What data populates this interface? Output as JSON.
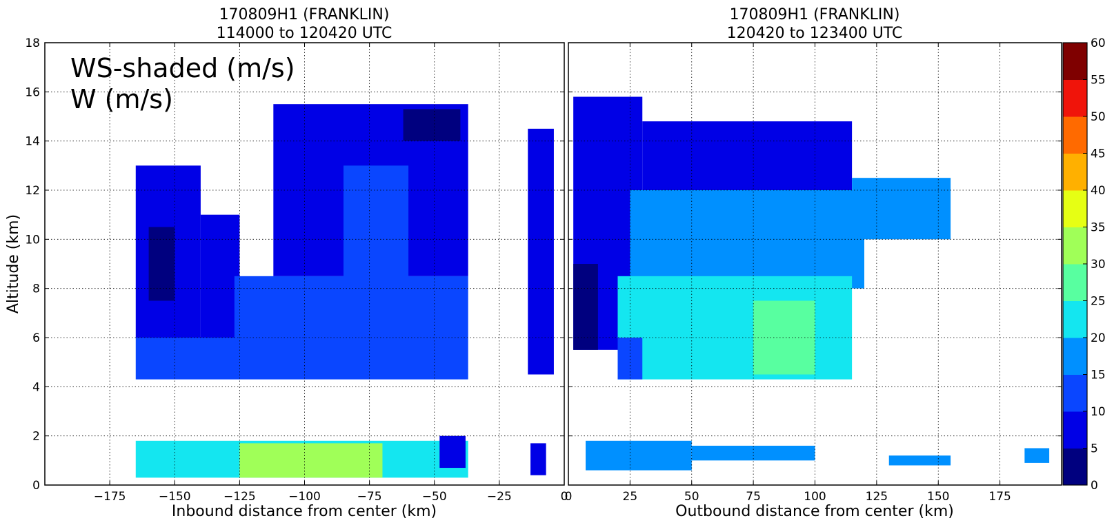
{
  "figure": {
    "overlay_lines": [
      "WS-shaded (m/s)",
      "W (m/s)"
    ],
    "ylabel": "Altitude (km)"
  },
  "colorbar": {
    "ticks": [
      0,
      5,
      10,
      15,
      20,
      25,
      30,
      35,
      40,
      45,
      50,
      55,
      60
    ],
    "colors": [
      "#00007f",
      "#0000e6",
      "#0a46ff",
      "#0090ff",
      "#14e6f0",
      "#58ffa0",
      "#a0ff58",
      "#e6ff14",
      "#ffb000",
      "#ff6a00",
      "#f0140a",
      "#7f0000"
    ]
  },
  "chart_data": [
    {
      "type": "heatmap",
      "title": "170809H1 (FRANKLIN)",
      "subtitle": "114000 to 120420 UTC",
      "xlabel": "Inbound distance from center (km)",
      "ylabel": "Altitude (km)",
      "xlim": [
        -200,
        0
      ],
      "ylim": [
        0,
        18
      ],
      "xticks": [
        -175,
        -150,
        -125,
        -100,
        -75,
        -50,
        -25,
        0
      ],
      "yticks": [
        0,
        2,
        4,
        6,
        8,
        10,
        12,
        14,
        16,
        18
      ],
      "grid": true,
      "colorbar_range": [
        0,
        60
      ],
      "regions": [
        {
          "x": [
            -165,
            -37
          ],
          "alt": [
            4.3,
            6.0
          ],
          "ws": 12
        },
        {
          "x": [
            -165,
            -140
          ],
          "alt": [
            6.0,
            13.0
          ],
          "ws": 8
        },
        {
          "x": [
            -160,
            -150
          ],
          "alt": [
            7.5,
            10.5
          ],
          "ws": 3
        },
        {
          "x": [
            -140,
            -125
          ],
          "alt": [
            6.0,
            11.0
          ],
          "ws": 8
        },
        {
          "x": [
            -127,
            -37
          ],
          "alt": [
            6.0,
            8.5
          ],
          "ws": 12
        },
        {
          "x": [
            -112,
            -37
          ],
          "alt": [
            8.5,
            15.5
          ],
          "ws": 8
        },
        {
          "x": [
            -85,
            -60
          ],
          "alt": [
            7.0,
            13.0
          ],
          "ws": 12
        },
        {
          "x": [
            -62,
            -40
          ],
          "alt": [
            14.0,
            15.3
          ],
          "ws": 3
        },
        {
          "x": [
            -14,
            -4
          ],
          "alt": [
            4.5,
            14.5
          ],
          "ws": 8
        },
        {
          "x": [
            -165,
            -37
          ],
          "alt": [
            0.3,
            1.8
          ],
          "ws": 22
        },
        {
          "x": [
            -125,
            -70
          ],
          "alt": [
            0.3,
            1.7
          ],
          "ws": 30
        },
        {
          "x": [
            -100,
            -80
          ],
          "alt": [
            0.4,
            1.3
          ],
          "ws": 33
        },
        {
          "x": [
            -48,
            -38
          ],
          "alt": [
            0.7,
            2.0
          ],
          "ws": 8
        },
        {
          "x": [
            -13,
            -7
          ],
          "alt": [
            0.4,
            1.7
          ],
          "ws": 8
        }
      ]
    },
    {
      "type": "heatmap",
      "title": "170809H1 (FRANKLIN)",
      "subtitle": "120420 to 123400 UTC",
      "xlabel": "Outbound distance from center (km)",
      "xlim": [
        0,
        200
      ],
      "ylim": [
        0,
        18
      ],
      "xticks": [
        0,
        25,
        50,
        75,
        100,
        125,
        150,
        175
      ],
      "yticks": [
        0,
        2,
        4,
        6,
        8,
        10,
        12,
        14,
        16,
        18
      ],
      "grid": true,
      "colorbar_range": [
        0,
        60
      ],
      "regions": [
        {
          "x": [
            2,
            30
          ],
          "alt": [
            5.5,
            15.8
          ],
          "ws": 8
        },
        {
          "x": [
            30,
            115
          ],
          "alt": [
            11.5,
            14.8
          ],
          "ws": 8
        },
        {
          "x": [
            115,
            155
          ],
          "alt": [
            10.0,
            12.5
          ],
          "ws": 17
        },
        {
          "x": [
            25,
            120
          ],
          "alt": [
            8.0,
            12.0
          ],
          "ws": 17
        },
        {
          "x": [
            20,
            115
          ],
          "alt": [
            4.3,
            8.5
          ],
          "ws": 22
        },
        {
          "x": [
            75,
            100
          ],
          "alt": [
            4.5,
            7.5
          ],
          "ws": 28
        },
        {
          "x": [
            2,
            12
          ],
          "alt": [
            5.5,
            9.0
          ],
          "ws": 3
        },
        {
          "x": [
            20,
            30
          ],
          "alt": [
            4.3,
            6.0
          ],
          "ws": 12
        },
        {
          "x": [
            7,
            50
          ],
          "alt": [
            0.6,
            1.8
          ],
          "ws": 17
        },
        {
          "x": [
            50,
            100
          ],
          "alt": [
            1.0,
            1.6
          ],
          "ws": 17
        },
        {
          "x": [
            130,
            155
          ],
          "alt": [
            0.8,
            1.2
          ],
          "ws": 17
        },
        {
          "x": [
            185,
            195
          ],
          "alt": [
            0.9,
            1.5
          ],
          "ws": 17
        }
      ]
    }
  ]
}
